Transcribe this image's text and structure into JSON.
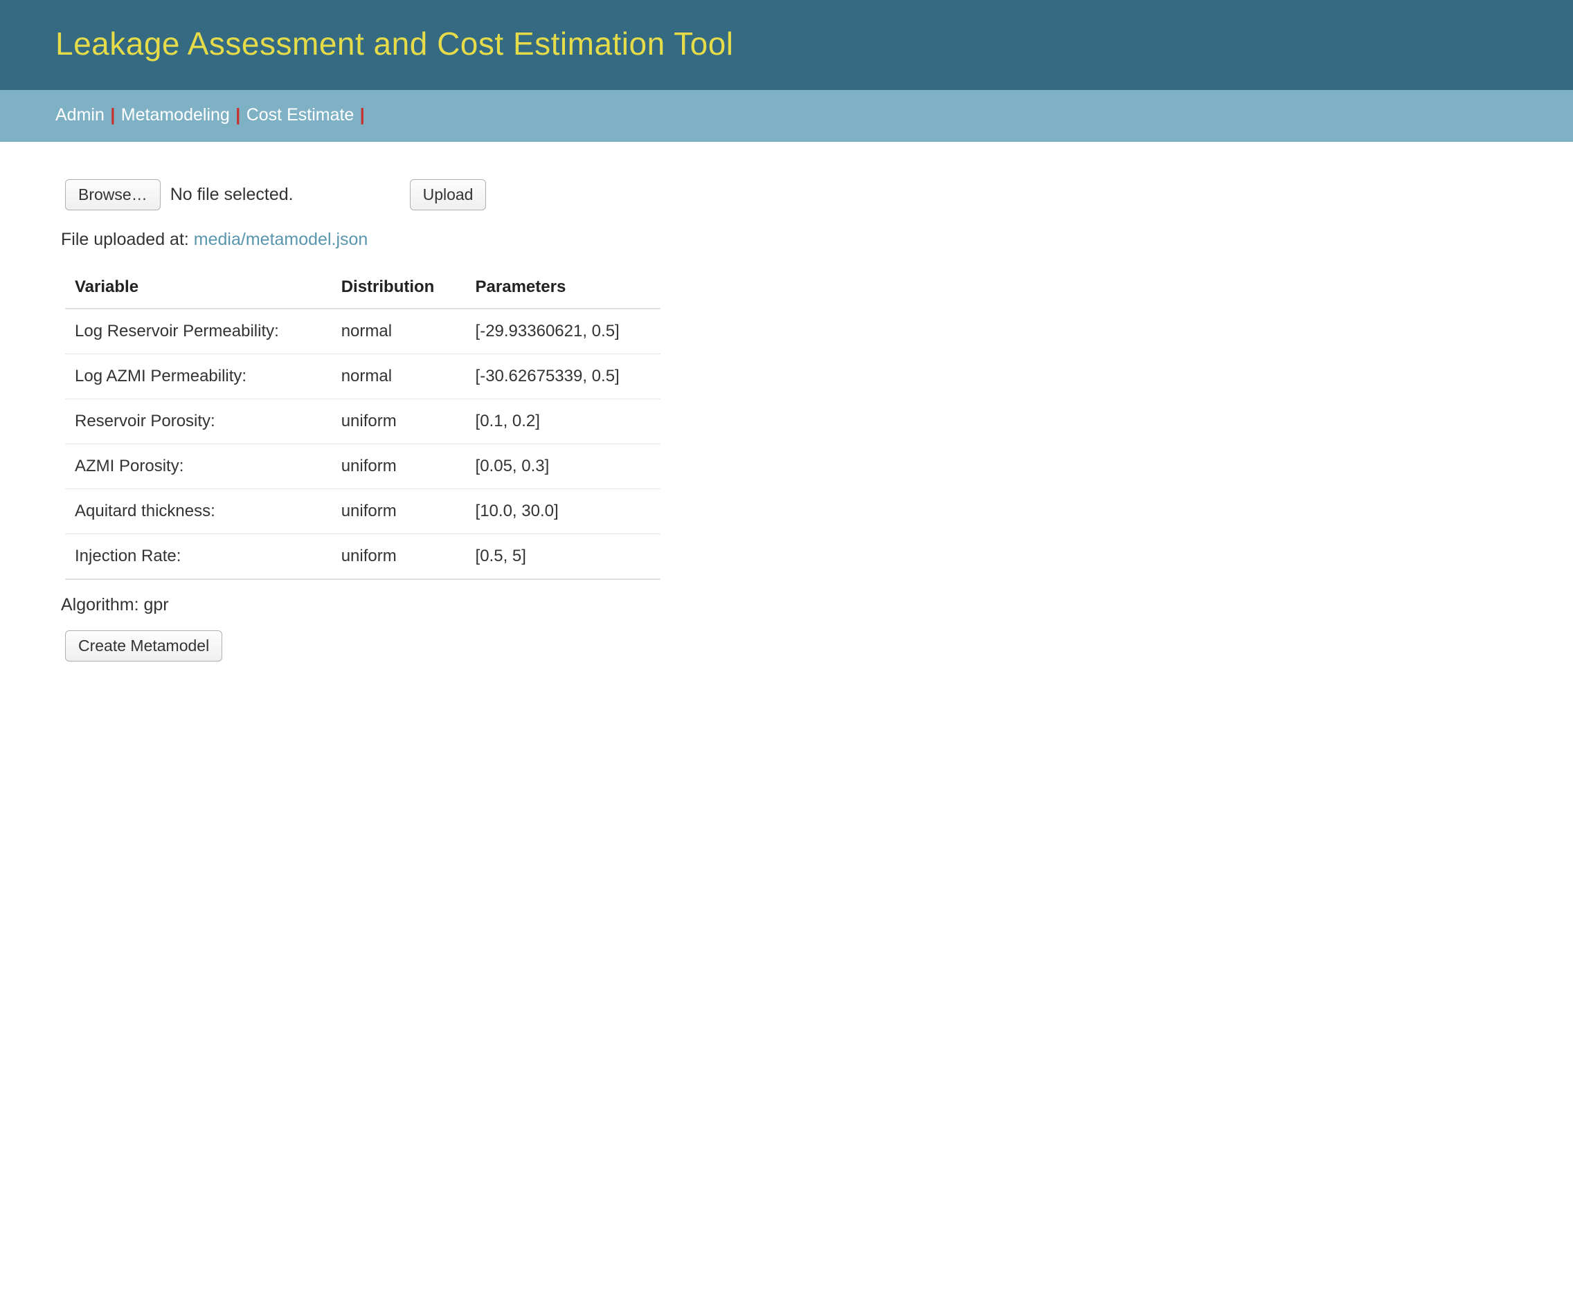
{
  "header": {
    "title": "Leakage Assessment and Cost Estimation Tool"
  },
  "nav": {
    "items": [
      "Admin",
      "Metamodeling",
      "Cost Estimate"
    ],
    "separator": "|"
  },
  "upload": {
    "browse_label": "Browse…",
    "file_status": "No file selected.",
    "upload_label": "Upload",
    "uploaded_prefix": "File uploaded at: ",
    "uploaded_path": "media/metamodel.json"
  },
  "table": {
    "columns": [
      "Variable",
      "Distribution",
      "Parameters"
    ],
    "rows": [
      {
        "variable": "Log Reservoir Permeability:",
        "distribution": "normal",
        "parameters": "[-29.93360621, 0.5]"
      },
      {
        "variable": "Log AZMI Permeability:",
        "distribution": "normal",
        "parameters": "[-30.62675339, 0.5]"
      },
      {
        "variable": "Reservoir Porosity:",
        "distribution": "uniform",
        "parameters": "[0.1, 0.2]"
      },
      {
        "variable": "AZMI Porosity:",
        "distribution": "uniform",
        "parameters": "[0.05, 0.3]"
      },
      {
        "variable": "Aquitard thickness:",
        "distribution": "uniform",
        "parameters": "[10.0, 30.0]"
      },
      {
        "variable": "Injection Rate:",
        "distribution": "uniform",
        "parameters": "[0.5, 5]"
      }
    ]
  },
  "algorithm": {
    "prefix": "Algorithm: ",
    "value": "gpr"
  },
  "actions": {
    "create_label": "Create Metamodel"
  }
}
